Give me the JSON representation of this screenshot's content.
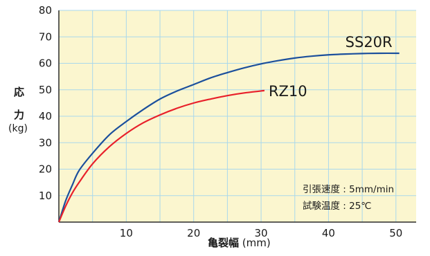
{
  "chart_data": {
    "type": "line",
    "ylabel_main": [
      "応",
      "力"
    ],
    "ylabel_unit": "(kg)",
    "xlabel_main": "亀裂幅",
    "xlabel_unit": "(mm)",
    "xlim": [
      0,
      53
    ],
    "ylim": [
      0,
      80
    ],
    "x_ticks": [
      10,
      20,
      30,
      40,
      50
    ],
    "y_ticks": [
      10,
      20,
      30,
      40,
      50,
      60,
      70,
      80
    ],
    "grid": true,
    "background": "#fbf6cf",
    "grid_color": "#a9d8ec",
    "series": [
      {
        "name": "SS20R",
        "color": "#1b4f9c",
        "x": [
          0,
          1,
          2,
          3,
          5,
          7.5,
          10,
          12.5,
          15,
          17.5,
          20,
          22.5,
          25,
          27.5,
          30,
          32.5,
          35,
          37.5,
          40,
          42.5,
          45,
          47.5,
          50.5
        ],
        "y": [
          0,
          8,
          14,
          19.5,
          26,
          33,
          38,
          42.5,
          46.5,
          49.5,
          52,
          54.5,
          56.5,
          58.3,
          59.8,
          61,
          62,
          62.7,
          63.2,
          63.5,
          63.7,
          63.8,
          63.8
        ]
      },
      {
        "name": "RZ10",
        "color": "#e8202a",
        "x": [
          0,
          1,
          2,
          3,
          5,
          7.5,
          10,
          12.5,
          15,
          17.5,
          20,
          22.5,
          25,
          27.5,
          30.5
        ],
        "y": [
          0,
          6,
          11,
          15,
          22,
          28.5,
          33.5,
          37.5,
          40.5,
          43,
          45,
          46.5,
          47.8,
          48.8,
          49.7
        ]
      }
    ]
  },
  "notes": [
    "引張速度 : 5mm/min",
    "試験温度 : 25℃"
  ]
}
